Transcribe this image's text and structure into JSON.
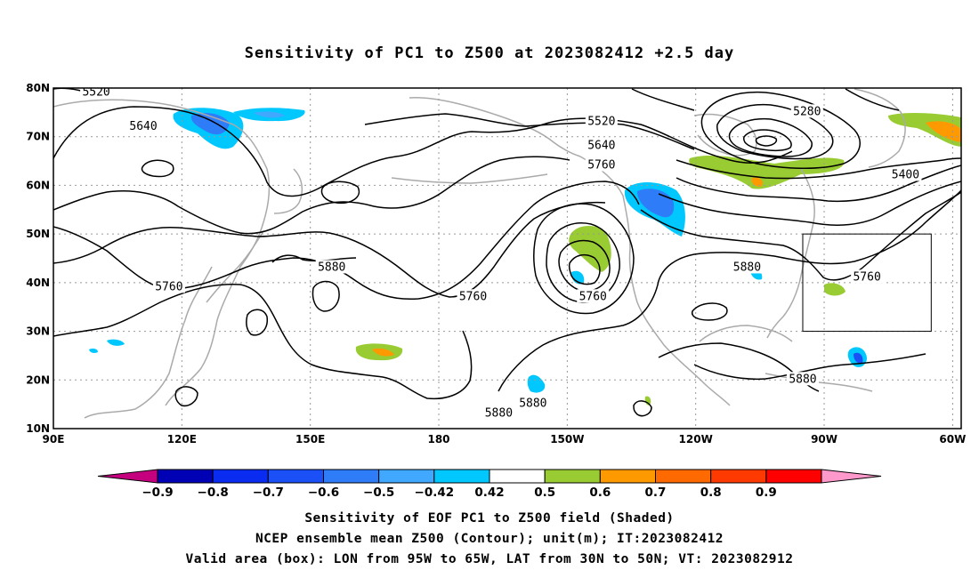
{
  "title": "Sensitivity of PC1 to Z500 at 2023082412 +2.5 day",
  "map": {
    "lon_range": [
      90,
      302
    ],
    "lat_range": [
      10,
      80
    ],
    "lon_labels": [
      "90E",
      "120E",
      "150E",
      "180",
      "150W",
      "120W",
      "90W",
      "60W"
    ],
    "lon_label_values": [
      90,
      120,
      150,
      180,
      210,
      240,
      270,
      300
    ],
    "lat_labels": [
      "10N",
      "20N",
      "30N",
      "40N",
      "50N",
      "60N",
      "70N",
      "80N"
    ],
    "lat_label_values": [
      10,
      20,
      30,
      40,
      50,
      60,
      70,
      80
    ],
    "contour_labels": [
      {
        "text": "5520",
        "lon": 100,
        "lat": 79
      },
      {
        "text": "5640",
        "lon": 111,
        "lat": 72
      },
      {
        "text": "5760",
        "lon": 117,
        "lat": 39
      },
      {
        "text": "5880",
        "lon": 155,
        "lat": 43
      },
      {
        "text": "5880",
        "lon": 194,
        "lat": 13
      },
      {
        "text": "5760",
        "lon": 188,
        "lat": 37
      },
      {
        "text": "5520",
        "lon": 218,
        "lat": 73
      },
      {
        "text": "5640",
        "lon": 218,
        "lat": 68
      },
      {
        "text": "5760",
        "lon": 218,
        "lat": 64
      },
      {
        "text": "5760",
        "lon": 216,
        "lat": 37
      },
      {
        "text": "5880",
        "lon": 202,
        "lat": 15
      },
      {
        "text": "5880",
        "lon": 252,
        "lat": 43
      },
      {
        "text": "5280",
        "lon": 266,
        "lat": 75
      },
      {
        "text": "5400",
        "lon": 289,
        "lat": 62
      },
      {
        "text": "5760",
        "lon": 280,
        "lat": 41
      },
      {
        "text": "5880",
        "lon": 265,
        "lat": 20
      }
    ],
    "valid_box": {
      "lon_min": 265,
      "lon_max": 295,
      "lat_min": 30,
      "lat_max": 50
    }
  },
  "colorbar": {
    "colors": [
      "#c4007f",
      "#0000b4",
      "#0a2cf0",
      "#1a50f5",
      "#2e7cf8",
      "#40a8ff",
      "#00c8ff",
      "#ffffff",
      "#99cc33",
      "#ff9900",
      "#ff6a00",
      "#ff3a00",
      "#ff0000",
      "#ff99cc"
    ],
    "labels": [
      "−0.9",
      "−0.8",
      "−0.7",
      "−0.6",
      "−0.5",
      "−0.42",
      "0.42",
      "0.5",
      "0.6",
      "0.7",
      "0.8",
      "0.9"
    ]
  },
  "captions": {
    "line1": "Sensitivity of EOF PC1 to Z500 field (Shaded)",
    "line2": "NCEP ensemble mean Z500 (Contour); unit(m); IT:2023082412",
    "line3": "Valid area (box): LON from 95W to 65W, LAT from 30N to 50N; VT: 2023082912"
  }
}
